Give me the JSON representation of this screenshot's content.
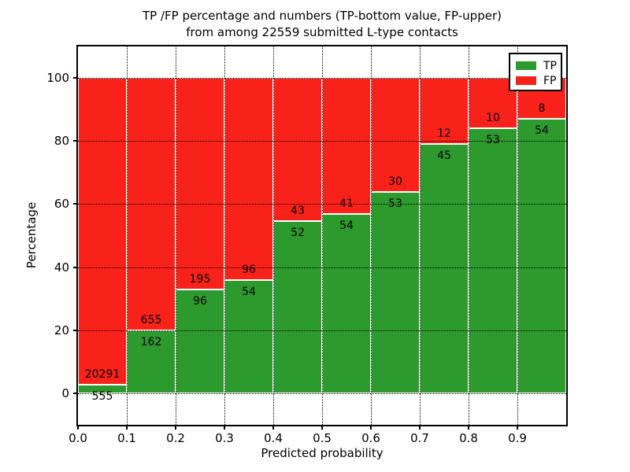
{
  "figure": {
    "title_line1": "TP /FP percentage and numbers (TP-bottom value, FP-upper)",
    "title_line2": "from among 22559 submitted L-type contacts"
  },
  "chart_data": {
    "type": "bar",
    "stacked": true,
    "normalized_to_percent": 100,
    "title": "TP /FP percentage and numbers (TP-bottom value, FP-upper)\nfrom among 22559 submitted L-type contacts",
    "xlabel": "Predicted probability",
    "ylabel": "Percentage",
    "total_contacts": 22559,
    "bin_edges": [
      0.0,
      0.1,
      0.2,
      0.3,
      0.4,
      0.5,
      0.6,
      0.7,
      0.8,
      0.9,
      1.0
    ],
    "series": [
      {
        "name": "TP",
        "color": "#2D9A2D",
        "counts": [
          555,
          162,
          96,
          54,
          52,
          54,
          53,
          45,
          53,
          54
        ]
      },
      {
        "name": "FP",
        "color": "#F9221A",
        "counts": [
          20291,
          655,
          195,
          96,
          43,
          41,
          30,
          12,
          10,
          8
        ]
      }
    ],
    "tp_percent": [
      2.7,
      19.8,
      33.0,
      36.0,
      54.7,
      56.8,
      63.9,
      78.9,
      84.1,
      87.1
    ],
    "xticks": [
      "0.0",
      "0.1",
      "0.2",
      "0.3",
      "0.4",
      "0.5",
      "0.6",
      "0.7",
      "0.8",
      "0.9"
    ],
    "yticks": [
      0,
      20,
      40,
      60,
      80,
      100
    ],
    "xlim": [
      0.0,
      1.0
    ],
    "ylim": [
      -10,
      110
    ],
    "grid": true,
    "legend": {
      "position": "upper right",
      "entries": [
        {
          "label": "TP",
          "color": "#2D9A2D"
        },
        {
          "label": "FP",
          "color": "#F9221A"
        }
      ]
    }
  }
}
